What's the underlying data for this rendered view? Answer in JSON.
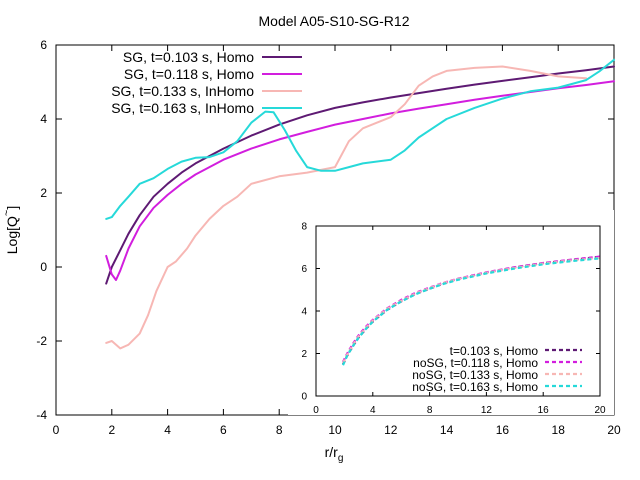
{
  "chart_data": [
    {
      "type": "line",
      "title": "Model A05-S10-SG-R12",
      "xlabel": "r/r",
      "xlabel_sub": "g",
      "ylabel": "Log[Q",
      "ylabel_sup": "~",
      "ylabel_close": "]",
      "xlim": [
        0,
        20
      ],
      "ylim": [
        -4,
        6
      ],
      "xticks": [
        0,
        2,
        4,
        6,
        8,
        10,
        12,
        14,
        16,
        18,
        20
      ],
      "yticks": [
        -4,
        -2,
        0,
        2,
        4,
        6
      ],
      "legend_position": "top-left",
      "series": [
        {
          "name": "SG, t=0.103 s, Homo",
          "color": "#5e1a73",
          "dash": "solid",
          "x": [
            1.8,
            2.0,
            2.3,
            2.6,
            3.0,
            3.5,
            4.0,
            4.5,
            5.0,
            6.0,
            7.0,
            8.0,
            9.0,
            10.0,
            11.0,
            12.0,
            13.0,
            14.0,
            15.0,
            16.0,
            17.0,
            18.0,
            19.0,
            20.0
          ],
          "y": [
            -0.45,
            0.0,
            0.45,
            0.9,
            1.4,
            1.9,
            2.25,
            2.55,
            2.8,
            3.2,
            3.55,
            3.85,
            4.1,
            4.3,
            4.45,
            4.58,
            4.7,
            4.82,
            4.93,
            5.03,
            5.13,
            5.23,
            5.32,
            5.42
          ]
        },
        {
          "name": "SG, t=0.118 s, Homo",
          "color": "#d21ede",
          "dash": "solid",
          "x": [
            1.8,
            2.0,
            2.15,
            2.3,
            2.6,
            3.0,
            3.5,
            4.0,
            4.5,
            5.0,
            6.0,
            7.0,
            8.0,
            9.0,
            10.0,
            11.0,
            12.0,
            13.0,
            14.0,
            15.0,
            16.0,
            17.0,
            18.0,
            19.0,
            20.0
          ],
          "y": [
            0.3,
            -0.2,
            -0.35,
            -0.1,
            0.5,
            1.1,
            1.6,
            1.95,
            2.25,
            2.5,
            2.9,
            3.2,
            3.45,
            3.65,
            3.85,
            4.0,
            4.15,
            4.28,
            4.4,
            4.52,
            4.63,
            4.73,
            4.83,
            4.92,
            5.02
          ]
        },
        {
          "name": "SG, t=0.133 s, InHomo",
          "color": "#f7b7b4",
          "dash": "solid",
          "x": [
            1.8,
            2.0,
            2.3,
            2.6,
            3.0,
            3.3,
            3.6,
            4.0,
            4.3,
            4.7,
            5.0,
            5.5,
            6.0,
            6.5,
            7.0,
            8.0,
            9.0,
            10.0,
            10.5,
            11.0,
            11.5,
            12.0,
            12.5,
            13.0,
            13.5,
            14.0,
            15.0,
            16.0,
            17.0,
            18.0,
            19.0
          ],
          "y": [
            -2.05,
            -2.0,
            -2.2,
            -2.1,
            -1.8,
            -1.3,
            -0.65,
            0.0,
            0.15,
            0.5,
            0.85,
            1.3,
            1.65,
            1.9,
            2.25,
            2.45,
            2.55,
            2.7,
            3.4,
            3.75,
            3.9,
            4.05,
            4.4,
            4.9,
            5.15,
            5.3,
            5.38,
            5.42,
            5.3,
            5.15,
            5.1
          ]
        },
        {
          "name": "SG, t=0.163 s, InHomo",
          "color": "#26d9d9",
          "dash": "solid",
          "x": [
            1.8,
            2.0,
            2.3,
            2.6,
            3.0,
            3.5,
            4.0,
            4.5,
            5.0,
            5.5,
            6.0,
            6.5,
            7.0,
            7.5,
            7.8,
            8.2,
            8.6,
            9.0,
            9.5,
            10.0,
            10.5,
            11.0,
            12.0,
            12.5,
            13.0,
            14.0,
            15.0,
            16.0,
            17.0,
            18.0,
            19.0,
            19.5,
            20.0
          ],
          "y": [
            1.3,
            1.35,
            1.65,
            1.9,
            2.25,
            2.4,
            2.65,
            2.85,
            2.95,
            2.97,
            3.1,
            3.4,
            3.9,
            4.2,
            4.18,
            3.7,
            3.15,
            2.7,
            2.6,
            2.6,
            2.7,
            2.8,
            2.9,
            3.15,
            3.5,
            4.0,
            4.3,
            4.55,
            4.75,
            4.85,
            5.05,
            5.3,
            5.6
          ]
        }
      ]
    },
    {
      "type": "line",
      "title": "",
      "xlabel": "",
      "ylabel": "",
      "xlim": [
        0,
        20
      ],
      "ylim": [
        0,
        8
      ],
      "xticks": [
        0,
        4,
        8,
        12,
        16,
        20
      ],
      "yticks": [
        0,
        2,
        4,
        6,
        8
      ],
      "legend_position": "bottom-right",
      "series": [
        {
          "name": "t=0.103 s, Homo",
          "color": "#5e1a73",
          "dash": "dashed",
          "x": [
            1.9,
            2.2,
            2.6,
            3.0,
            3.5,
            4.0,
            5.0,
            6.0,
            7.0,
            8.0,
            9.0,
            10.0,
            12.0,
            14.0,
            16.0,
            18.0,
            20.0
          ],
          "y": [
            1.5,
            1.9,
            2.35,
            2.75,
            3.15,
            3.5,
            4.05,
            4.45,
            4.8,
            5.05,
            5.3,
            5.5,
            5.8,
            6.05,
            6.25,
            6.4,
            6.55
          ]
        },
        {
          "name": "noSG, t=0.118 s, Homo",
          "color": "#d21ede",
          "dash": "dashed",
          "x": [
            1.9,
            2.2,
            2.6,
            3.0,
            3.5,
            4.0,
            5.0,
            6.0,
            7.0,
            8.0,
            9.0,
            10.0,
            12.0,
            14.0,
            16.0,
            18.0,
            20.0
          ],
          "y": [
            1.6,
            2.0,
            2.45,
            2.85,
            3.25,
            3.58,
            4.12,
            4.52,
            4.85,
            5.1,
            5.33,
            5.52,
            5.82,
            6.06,
            6.26,
            6.42,
            6.56
          ]
        },
        {
          "name": "noSG, t=0.133 s, Homo",
          "color": "#f7b7b4",
          "dash": "dashed",
          "x": [
            1.9,
            2.2,
            2.6,
            3.0,
            3.5,
            4.0,
            5.0,
            6.0,
            7.0,
            8.0,
            9.0,
            10.0,
            12.0,
            14.0,
            16.0,
            18.0,
            20.0
          ],
          "y": [
            1.55,
            1.95,
            2.4,
            2.8,
            3.2,
            3.55,
            4.1,
            4.48,
            4.82,
            5.08,
            5.32,
            5.5,
            5.8,
            6.03,
            6.23,
            6.38,
            6.5
          ]
        },
        {
          "name": "noSG, t=0.163 s, Homo",
          "color": "#26d9d9",
          "dash": "dashed",
          "x": [
            1.9,
            2.2,
            2.6,
            3.0,
            3.5,
            4.0,
            5.0,
            6.0,
            7.0,
            8.0,
            9.0,
            10.0,
            12.0,
            14.0,
            16.0,
            18.0,
            20.0
          ],
          "y": [
            1.45,
            1.9,
            2.35,
            2.75,
            3.15,
            3.5,
            4.05,
            4.45,
            4.78,
            5.05,
            5.28,
            5.47,
            5.77,
            6.0,
            6.2,
            6.35,
            6.48
          ]
        }
      ]
    }
  ]
}
